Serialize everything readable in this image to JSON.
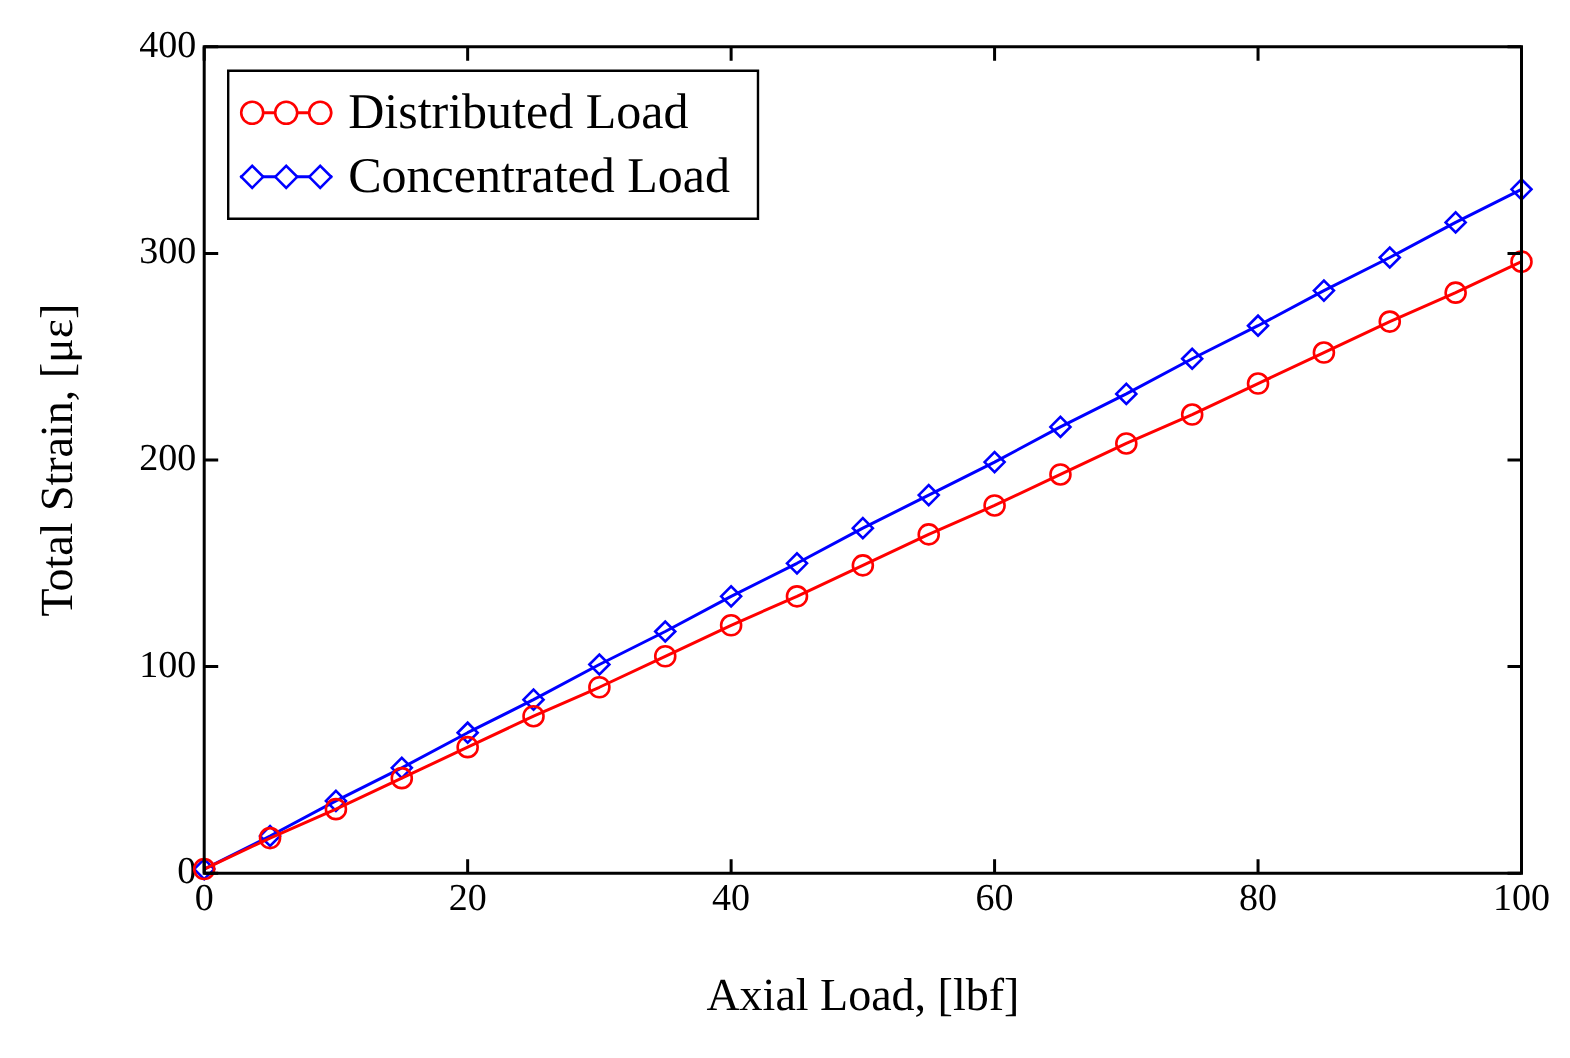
{
  "chart_data": {
    "type": "line",
    "xlabel": "Axial Load, [lbf]",
    "ylabel": "Total Strain, [με]",
    "x": [
      0,
      5,
      10,
      15,
      20,
      25,
      30,
      35,
      40,
      45,
      50,
      55,
      60,
      65,
      70,
      75,
      80,
      85,
      90,
      95,
      100
    ],
    "series": [
      {
        "name": "Distributed Load",
        "color": "#ff0000",
        "marker": "circle",
        "values": [
          2,
          17,
          31,
          46,
          61,
          76,
          90,
          105,
          120,
          134,
          149,
          164,
          178,
          193,
          208,
          222,
          237,
          252,
          267,
          281,
          296
        ]
      },
      {
        "name": "Concentrated Load",
        "color": "#0000ff",
        "marker": "diamond",
        "values": [
          2,
          18,
          35,
          51,
          68,
          84,
          101,
          117,
          134,
          150,
          167,
          183,
          199,
          216,
          232,
          249,
          265,
          282,
          298,
          315,
          331
        ]
      }
    ],
    "xlim": [
      0,
      100
    ],
    "xticks": [
      0,
      20,
      40,
      60,
      80,
      100
    ],
    "ylim": [
      0,
      400
    ],
    "yticks": [
      0,
      100,
      200,
      300,
      400
    ],
    "grid": false,
    "legend": "top left",
    "line_style": "solid"
  }
}
